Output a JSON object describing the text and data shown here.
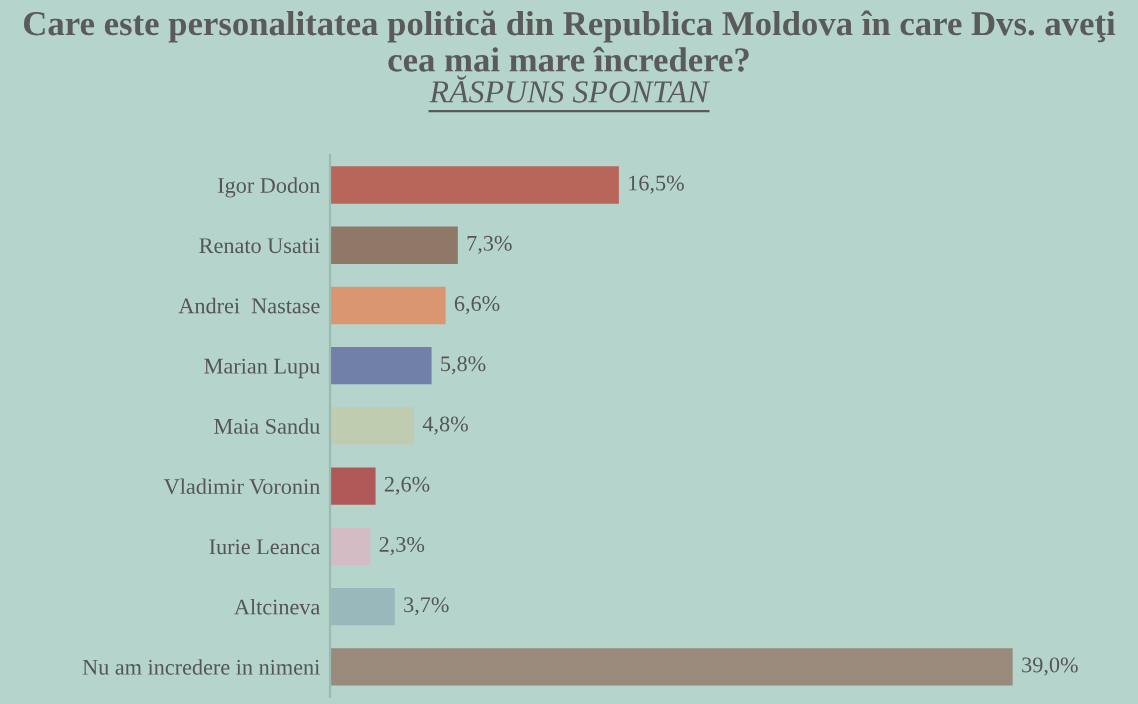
{
  "chart_data": {
    "type": "bar",
    "orientation": "horizontal",
    "title": "Care este personalitatea politică din Republica Moldova în care Dvs. aveţi cea mai mare încredere?",
    "subtitle": "RĂSPUNS SPONTAN",
    "categories": [
      "Igor Dodon",
      "Renato Usatii",
      "Andrei  Nastase",
      "Marian Lupu",
      "Maia Sandu",
      "Vladimir Voronin",
      "Iurie Leanca",
      "Altcineva",
      "Nu am incredere in nimeni"
    ],
    "values": [
      16.5,
      7.3,
      6.6,
      5.8,
      4.8,
      2.6,
      2.3,
      3.7,
      39.0
    ],
    "value_labels": [
      "16,5%",
      "7,3%",
      "6,6%",
      "5,8%",
      "4,8%",
      "2,6%",
      "2,3%",
      "3,7%",
      "39,0%"
    ],
    "colors": [
      "#b8665a",
      "#8f7868",
      "#d99670",
      "#7080a8",
      "#c0ccb0",
      "#b05858",
      "#d4bcc4",
      "#98b8bc",
      "#9a8a7c"
    ],
    "tick_labels": "y",
    "grid": false,
    "legend": false
  }
}
